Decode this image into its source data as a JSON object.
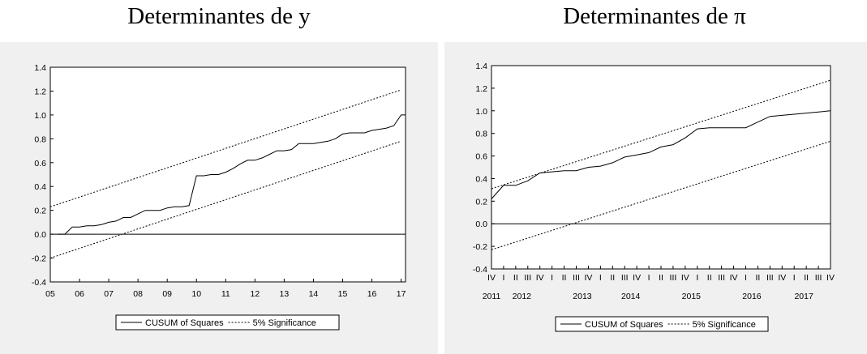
{
  "titles": {
    "left": "Determinantes de y",
    "right": "Determinantes de π"
  },
  "colors": {
    "panel_bg": "#f0f0f0",
    "plot_bg": "#ffffff",
    "line": "#000000"
  },
  "chart_data": [
    {
      "type": "line",
      "title": "Determinantes de y",
      "x_ticks": [
        "05",
        "06",
        "07",
        "08",
        "09",
        "10",
        "11",
        "12",
        "13",
        "14",
        "15",
        "16",
        "17"
      ],
      "x_tick_positions": [
        2005,
        2006,
        2007,
        2008,
        2009,
        2010,
        2011,
        2012,
        2013,
        2014,
        2015,
        2016,
        2017
      ],
      "xlim": [
        2005,
        2017.15
      ],
      "ylim": [
        -0.4,
        1.4
      ],
      "y_ticks": [
        "-0.4",
        "-0.2",
        "0.0",
        "0.2",
        "0.4",
        "0.6",
        "0.8",
        "1.0",
        "1.2",
        "1.4"
      ],
      "y_tick_values": [
        -0.4,
        -0.2,
        0.0,
        0.2,
        0.4,
        0.6,
        0.8,
        1.0,
        1.2,
        1.4
      ],
      "zero_line": true,
      "legend": [
        "CUSUM of Squares",
        "5% Significance"
      ],
      "legend_position": "bottom",
      "series": [
        {
          "name": "CUSUM of Squares",
          "style": "solid",
          "x": [
            2005.25,
            2005.5,
            2005.75,
            2006.0,
            2006.25,
            2006.5,
            2006.75,
            2007.0,
            2007.25,
            2007.5,
            2007.75,
            2008.0,
            2008.25,
            2008.5,
            2008.75,
            2009.0,
            2009.25,
            2009.5,
            2009.75,
            2010.0,
            2010.25,
            2010.5,
            2010.75,
            2011.0,
            2011.25,
            2011.5,
            2011.75,
            2012.0,
            2012.25,
            2012.5,
            2012.75,
            2013.0,
            2013.25,
            2013.5,
            2013.75,
            2014.0,
            2014.25,
            2014.5,
            2014.75,
            2015.0,
            2015.25,
            2015.5,
            2015.75,
            2016.0,
            2016.25,
            2016.5,
            2016.75,
            2017.0,
            2017.15
          ],
          "y": [
            0.0,
            0.0,
            0.06,
            0.06,
            0.07,
            0.07,
            0.08,
            0.1,
            0.11,
            0.14,
            0.14,
            0.17,
            0.2,
            0.2,
            0.2,
            0.22,
            0.23,
            0.23,
            0.24,
            0.49,
            0.49,
            0.5,
            0.5,
            0.52,
            0.55,
            0.59,
            0.62,
            0.62,
            0.64,
            0.67,
            0.7,
            0.7,
            0.71,
            0.76,
            0.76,
            0.76,
            0.77,
            0.78,
            0.8,
            0.84,
            0.85,
            0.85,
            0.85,
            0.87,
            0.88,
            0.89,
            0.91,
            1.0,
            1.0
          ]
        },
        {
          "name": "5% Significance",
          "style": "dashed",
          "x": [
            2005.0,
            2017.0
          ],
          "y": [
            0.23,
            1.21
          ]
        },
        {
          "name": "5% Significance",
          "style": "dashed",
          "x": [
            2005.0,
            2017.0
          ],
          "y": [
            -0.2,
            0.78
          ]
        }
      ]
    },
    {
      "type": "line",
      "title": "Determinantes de π",
      "x_ticks": [
        "IV",
        "I",
        "II",
        "III",
        "IV",
        "I",
        "II",
        "III",
        "IV",
        "I",
        "II",
        "III",
        "IV",
        "I",
        "II",
        "III",
        "IV",
        "I",
        "II",
        "III",
        "IV",
        "I",
        "II",
        "III",
        "IV",
        "I",
        "II",
        "III",
        "IV"
      ],
      "x_tick_positions": [
        0,
        1,
        2,
        3,
        4,
        5,
        6,
        7,
        8,
        9,
        10,
        11,
        12,
        13,
        14,
        15,
        16,
        17,
        18,
        19,
        20,
        21,
        22,
        23,
        24,
        25,
        26,
        27,
        28
      ],
      "year_labels": [
        "2011",
        "2012",
        "2013",
        "2014",
        "2015",
        "2016",
        "2017"
      ],
      "year_label_positions": [
        0,
        2.5,
        7.5,
        11.5,
        16.5,
        21.5,
        25.8
      ],
      "xlim": [
        0,
        28
      ],
      "ylim": [
        -0.4,
        1.4
      ],
      "y_ticks": [
        "-0.4",
        "-0.2",
        "0.0",
        "0.2",
        "0.4",
        "0.6",
        "0.8",
        "1.0",
        "1.2",
        "1.4"
      ],
      "y_tick_values": [
        -0.4,
        -0.2,
        0.0,
        0.2,
        0.4,
        0.6,
        0.8,
        1.0,
        1.2,
        1.4
      ],
      "zero_line": true,
      "legend": [
        "CUSUM of Squares",
        "5% Significance"
      ],
      "legend_position": "bottom",
      "series": [
        {
          "name": "CUSUM of Squares",
          "style": "solid",
          "x": [
            0,
            1,
            2,
            3,
            4,
            5,
            6,
            7,
            8,
            9,
            10,
            11,
            12,
            13,
            14,
            15,
            16,
            17,
            18,
            19,
            20,
            21,
            22,
            23,
            24,
            25,
            26,
            27,
            28
          ],
          "y": [
            0.22,
            0.34,
            0.34,
            0.38,
            0.45,
            0.46,
            0.47,
            0.47,
            0.5,
            0.51,
            0.54,
            0.59,
            0.61,
            0.63,
            0.68,
            0.7,
            0.76,
            0.84,
            0.85,
            0.85,
            0.85,
            0.85,
            0.9,
            0.95,
            0.96,
            0.97,
            0.98,
            0.99,
            1.0
          ]
        },
        {
          "name": "5% Significance",
          "style": "dashed",
          "x": [
            0,
            28
          ],
          "y": [
            0.31,
            1.27
          ]
        },
        {
          "name": "5% Significance",
          "style": "dashed",
          "x": [
            0,
            28
          ],
          "y": [
            -0.23,
            0.73
          ]
        }
      ]
    }
  ]
}
